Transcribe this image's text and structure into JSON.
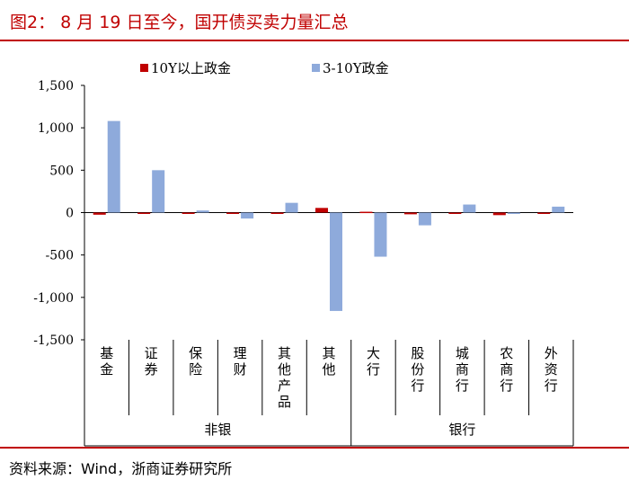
{
  "figure": {
    "title": "图2： 8 月 19 日至今，国开债买卖力量汇总",
    "source": "资料来源：Wind，浙商证券研究所"
  },
  "chart_data": {
    "type": "bar",
    "title": "图2： 8 月 19 日至今，国开债买卖力量汇总",
    "categories": [
      "基金",
      "证券",
      "保险",
      "理财",
      "其他产品",
      "其他",
      "大行",
      "股份行",
      "城商行",
      "农商行",
      "外资行"
    ],
    "groups": [
      {
        "label": "非银",
        "categories": [
          "基金",
          "证券",
          "保险",
          "理财",
          "其他产品",
          "其他"
        ]
      },
      {
        "label": "银行",
        "categories": [
          "大行",
          "股份行",
          "城商行",
          "农商行",
          "外资行"
        ]
      }
    ],
    "series": [
      {
        "name": "10Y以上政金",
        "color": "#c00000",
        "values": [
          -25,
          -15,
          -10,
          -10,
          -10,
          55,
          10,
          -20,
          -10,
          -30,
          -10
        ]
      },
      {
        "name": "3-10Y政金",
        "color": "#8eaadb",
        "values": [
          1080,
          500,
          25,
          -70,
          115,
          -1160,
          -520,
          -150,
          95,
          -10,
          70
        ]
      }
    ],
    "ylim": [
      -1500,
      1500
    ],
    "yticks": [
      1500,
      1000,
      500,
      0,
      -500,
      -1000,
      -1500
    ],
    "ytick_labels": [
      "1,500",
      "1,000",
      "500",
      "0",
      "-500",
      "-1,000",
      "-1,500"
    ],
    "legend_position": "top-center",
    "xlabel": "",
    "ylabel": ""
  }
}
